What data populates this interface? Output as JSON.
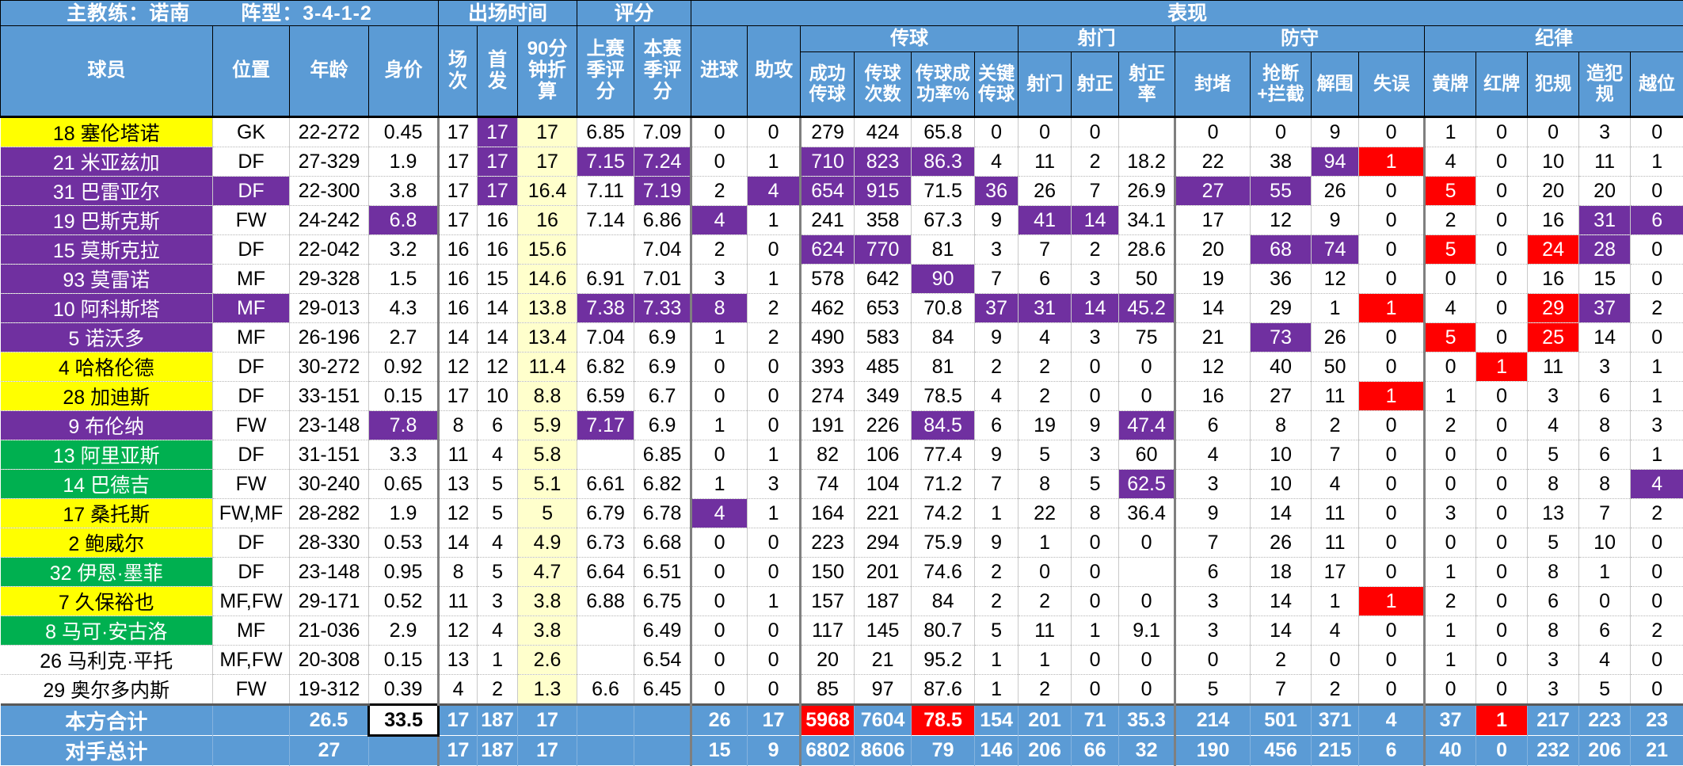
{
  "header": {
    "top": {
      "coach": "主教练：诺南",
      "formation": "阵型：3-4-1-2",
      "playing_time": "出场时间",
      "rating": "评分",
      "performance": "表现"
    },
    "groups": {
      "passing": "传球",
      "shooting": "射门",
      "defense": "防守",
      "discipline": "纪律"
    },
    "columns": {
      "player": "球员",
      "pos": "位置",
      "age": "年龄",
      "value": "身价",
      "apps": "场次",
      "starts": "首发",
      "per90": "90分钟折算",
      "rating_last": "上赛季评分",
      "rating_cur": "本赛季评分",
      "goals": "进球",
      "assists": "助攻",
      "pass_ok": "成功传球",
      "pass_cnt": "传球次数",
      "pass_pct": "传球成功率%",
      "key_pass": "关键传球",
      "shots": "射门",
      "sot": "射正",
      "sot_pct": "射正率",
      "blocks": "封堵",
      "tackles": "抢断+拦截",
      "clearances": "解围",
      "errors": "失误",
      "yellow": "黄牌",
      "red": "红牌",
      "fouls": "犯规",
      "fouled": "造犯规",
      "offside": "越位"
    }
  },
  "colors": {
    "header_blue": "#5B9BD5",
    "highlight_purple": "#7030A0",
    "highlight_red": "#FF0000",
    "name_yellow": "#FFFF00",
    "name_green": "#00B050",
    "per90_yellow": "#FFFFCC"
  },
  "rows": [
    {
      "player": "18 塞伦塔诺",
      "bg": "y",
      "cells": [
        "GK",
        "22-272",
        "0.45",
        "17",
        [
          "17",
          "p"
        ],
        "17",
        "6.85",
        "7.09",
        "0",
        "0",
        "279",
        "424",
        "65.8",
        "0",
        "0",
        "0",
        "",
        "0",
        "0",
        "9",
        "0",
        "1",
        "0",
        "0",
        "3",
        "0"
      ]
    },
    {
      "player": "21 米亚兹加",
      "bg": "p",
      "cells": [
        "DF",
        "27-329",
        "1.9",
        "17",
        [
          "17",
          "p"
        ],
        "17",
        [
          "7.15",
          "p"
        ],
        [
          "7.24",
          "p"
        ],
        "0",
        "1",
        [
          "710",
          "p"
        ],
        [
          "823",
          "p"
        ],
        [
          "86.3",
          "p"
        ],
        "4",
        "11",
        "2",
        "18.2",
        "22",
        "38",
        [
          "94",
          "p"
        ],
        [
          "1",
          "r"
        ],
        "4",
        "0",
        "10",
        "11",
        "1"
      ]
    },
    {
      "player": "31 巴雷亚尔",
      "bg": "p",
      "cells": [
        [
          "DF",
          "p"
        ],
        "22-300",
        "3.8",
        "17",
        [
          "17",
          "p"
        ],
        "16.4",
        "7.11",
        [
          "7.19",
          "p"
        ],
        "2",
        [
          "4",
          "p"
        ],
        [
          "654",
          "p"
        ],
        [
          "915",
          "p"
        ],
        "71.5",
        [
          "36",
          "p"
        ],
        "26",
        "7",
        "26.9",
        [
          "27",
          "p"
        ],
        [
          "55",
          "p"
        ],
        "26",
        "0",
        [
          "5",
          "r"
        ],
        "0",
        "20",
        "20",
        "0"
      ]
    },
    {
      "player": "19 巴斯克斯",
      "bg": "p",
      "cells": [
        "FW",
        "24-242",
        [
          "6.8",
          "p"
        ],
        "17",
        "16",
        "16",
        "7.14",
        "6.86",
        [
          "4",
          "p"
        ],
        "1",
        "241",
        "358",
        "67.3",
        "9",
        [
          "41",
          "p"
        ],
        [
          "14",
          "p"
        ],
        "34.1",
        "17",
        "12",
        "9",
        "0",
        "2",
        "0",
        "16",
        [
          "31",
          "p"
        ],
        [
          "6",
          "p"
        ]
      ]
    },
    {
      "player": "15 莫斯克拉",
      "bg": "p",
      "cells": [
        "DF",
        "22-042",
        "3.2",
        "16",
        "16",
        "15.6",
        "",
        "7.04",
        "2",
        "0",
        [
          "624",
          "p"
        ],
        [
          "770",
          "p"
        ],
        "81",
        "3",
        "7",
        "2",
        "28.6",
        "20",
        [
          "68",
          "p"
        ],
        [
          "74",
          "p"
        ],
        "0",
        [
          "5",
          "r"
        ],
        "0",
        [
          "24",
          "r"
        ],
        [
          "28",
          "p"
        ],
        "0"
      ]
    },
    {
      "player": "93 莫雷诺",
      "bg": "p",
      "cells": [
        "MF",
        "29-328",
        "1.5",
        "16",
        "15",
        "14.6",
        "6.91",
        "7.01",
        "3",
        "1",
        "578",
        "642",
        [
          "90",
          "p"
        ],
        "7",
        "6",
        "3",
        "50",
        "19",
        "36",
        "12",
        "0",
        "0",
        "0",
        "16",
        "15",
        "0"
      ]
    },
    {
      "player": "10 阿科斯塔",
      "bg": "p",
      "cells": [
        [
          "MF",
          "p"
        ],
        "29-013",
        "4.3",
        "16",
        "14",
        "13.8",
        [
          "7.38",
          "p"
        ],
        [
          "7.33",
          "p"
        ],
        [
          "8",
          "p"
        ],
        "2",
        "462",
        "653",
        "70.8",
        [
          "37",
          "p"
        ],
        [
          "31",
          "p"
        ],
        [
          "14",
          "p"
        ],
        [
          "45.2",
          "p"
        ],
        "14",
        "29",
        "1",
        [
          "1",
          "r"
        ],
        "4",
        "0",
        [
          "29",
          "r"
        ],
        [
          "37",
          "p"
        ],
        "2"
      ]
    },
    {
      "player": "5 诺沃多",
      "bg": "p",
      "cells": [
        "MF",
        "26-196",
        "2.7",
        "14",
        "14",
        "13.4",
        "7.04",
        "6.9",
        "1",
        "2",
        "490",
        "583",
        "84",
        "9",
        "4",
        "3",
        "75",
        "21",
        [
          "73",
          "p"
        ],
        "26",
        "0",
        [
          "5",
          "r"
        ],
        "0",
        [
          "25",
          "r"
        ],
        "14",
        "0"
      ]
    },
    {
      "player": "4 哈格伦德",
      "bg": "y",
      "cells": [
        "DF",
        "30-272",
        "0.92",
        "12",
        "12",
        "11.4",
        "6.82",
        "6.9",
        "0",
        "0",
        "393",
        "485",
        "81",
        "2",
        "2",
        "0",
        "0",
        "12",
        "40",
        "50",
        "0",
        "0",
        [
          "1",
          "r"
        ],
        "11",
        "3",
        "1"
      ]
    },
    {
      "player": "28 加迪斯",
      "bg": "y",
      "cells": [
        "DF",
        "33-151",
        "0.15",
        "17",
        "10",
        "8.8",
        "6.59",
        "6.7",
        "0",
        "0",
        "274",
        "349",
        "78.5",
        "4",
        "2",
        "0",
        "0",
        "16",
        "27",
        "11",
        [
          "1",
          "r"
        ],
        "1",
        "0",
        "3",
        "6",
        "1"
      ]
    },
    {
      "player": "9 布伦纳",
      "bg": "p",
      "cells": [
        "FW",
        "23-148",
        [
          "7.8",
          "p"
        ],
        "8",
        "6",
        "5.9",
        [
          "7.17",
          "p"
        ],
        "6.9",
        "1",
        "0",
        "191",
        "226",
        [
          "84.5",
          "p"
        ],
        "6",
        "19",
        "9",
        [
          "47.4",
          "p"
        ],
        "6",
        "8",
        "2",
        "0",
        "2",
        "0",
        "4",
        "8",
        "3"
      ]
    },
    {
      "player": "13 阿里亚斯",
      "bg": "g",
      "cells": [
        "DF",
        "31-151",
        "3.3",
        "11",
        "4",
        "5.8",
        "",
        "6.85",
        "0",
        "1",
        "82",
        "106",
        "77.4",
        "9",
        "5",
        "3",
        "60",
        "4",
        "10",
        "7",
        "0",
        "0",
        "0",
        "5",
        "6",
        "1"
      ]
    },
    {
      "player": "14 巴德吉",
      "bg": "g",
      "cells": [
        "FW",
        "30-240",
        "0.65",
        "13",
        "5",
        "5.1",
        "6.61",
        "6.82",
        "1",
        "3",
        "74",
        "104",
        "71.2",
        "7",
        "8",
        "5",
        [
          "62.5",
          "p"
        ],
        "3",
        "10",
        "4",
        "0",
        "0",
        "0",
        "8",
        "8",
        [
          "4",
          "p"
        ]
      ]
    },
    {
      "player": "17 桑托斯",
      "bg": "y",
      "cells": [
        "FW,MF",
        "28-282",
        "1.9",
        "12",
        "5",
        "5",
        "6.79",
        "6.78",
        [
          "4",
          "p"
        ],
        "1",
        "164",
        "221",
        "74.2",
        "1",
        "22",
        "8",
        "36.4",
        "9",
        "14",
        "11",
        "0",
        "3",
        "0",
        "13",
        "7",
        "2"
      ]
    },
    {
      "player": "2 鲍威尔",
      "bg": "y",
      "cells": [
        "DF",
        "28-330",
        "0.53",
        "14",
        "4",
        "4.9",
        "6.73",
        "6.68",
        "0",
        "0",
        "223",
        "294",
        "75.9",
        "9",
        "1",
        "0",
        "0",
        "7",
        "26",
        "11",
        "0",
        "0",
        "0",
        "5",
        "10",
        "0"
      ]
    },
    {
      "player": "32 伊恩·墨菲",
      "bg": "g",
      "cells": [
        "DF",
        "23-148",
        "0.95",
        "8",
        "5",
        "4.7",
        "6.64",
        "6.51",
        "0",
        "0",
        "150",
        "201",
        "74.6",
        "2",
        "0",
        "0",
        "",
        "6",
        "18",
        "17",
        "0",
        "1",
        "0",
        "8",
        "1",
        "0"
      ]
    },
    {
      "player": "7 久保裕也",
      "bg": "y",
      "cells": [
        "MF,FW",
        "29-171",
        "0.52",
        "11",
        "3",
        "3.8",
        "6.88",
        "6.75",
        "0",
        "1",
        "157",
        "187",
        "84",
        "2",
        "2",
        "0",
        "0",
        "3",
        "14",
        "1",
        [
          "1",
          "r"
        ],
        "2",
        "0",
        "6",
        "0",
        "0"
      ]
    },
    {
      "player": "8 马可·安古洛",
      "bg": "g",
      "cells": [
        "MF",
        "21-036",
        "2.9",
        "12",
        "4",
        "3.8",
        "",
        "6.49",
        "0",
        "0",
        "117",
        "145",
        "80.7",
        "5",
        "11",
        "1",
        "9.1",
        "3",
        "14",
        "4",
        "0",
        "1",
        "0",
        "8",
        "6",
        "2"
      ]
    },
    {
      "player": "26 马利克·平托",
      "bg": "w",
      "cells": [
        "MF,FW",
        "20-308",
        "0.15",
        "13",
        "1",
        "2.6",
        "",
        "6.54",
        "0",
        "0",
        "20",
        "21",
        "95.2",
        "1",
        "1",
        "0",
        "0",
        "0",
        "2",
        "0",
        "0",
        "1",
        "0",
        "3",
        "4",
        "0"
      ]
    },
    {
      "player": "29 奥尔多内斯",
      "bg": "w",
      "cells": [
        "FW",
        "19-312",
        "0.39",
        "4",
        "2",
        "1.3",
        "6.6",
        "6.45",
        "0",
        "0",
        "85",
        "97",
        "87.6",
        "1",
        "2",
        "0",
        "0",
        "5",
        "7",
        "2",
        "0",
        "0",
        "0",
        "3",
        "5",
        "0"
      ]
    }
  ],
  "totals": [
    {
      "label": "本方合计",
      "cells": [
        "",
        "26.5",
        [
          "33.5",
          "box"
        ],
        "17",
        "187",
        "17",
        "",
        "",
        "26",
        "17",
        [
          "5968",
          "r"
        ],
        "7604",
        [
          "78.5",
          "r"
        ],
        "154",
        "201",
        "71",
        "35.3",
        "214",
        "501",
        "371",
        "4",
        "37",
        [
          "1",
          "r"
        ],
        "217",
        "223",
        "23"
      ]
    },
    {
      "label": "对手总计",
      "cells": [
        "",
        "27",
        "",
        "17",
        "187",
        "17",
        "",
        "",
        "15",
        "9",
        "6802",
        "8606",
        "79",
        "146",
        "206",
        "66",
        "32",
        "190",
        "456",
        "215",
        "6",
        "40",
        "0",
        "232",
        "206",
        "21"
      ]
    }
  ]
}
